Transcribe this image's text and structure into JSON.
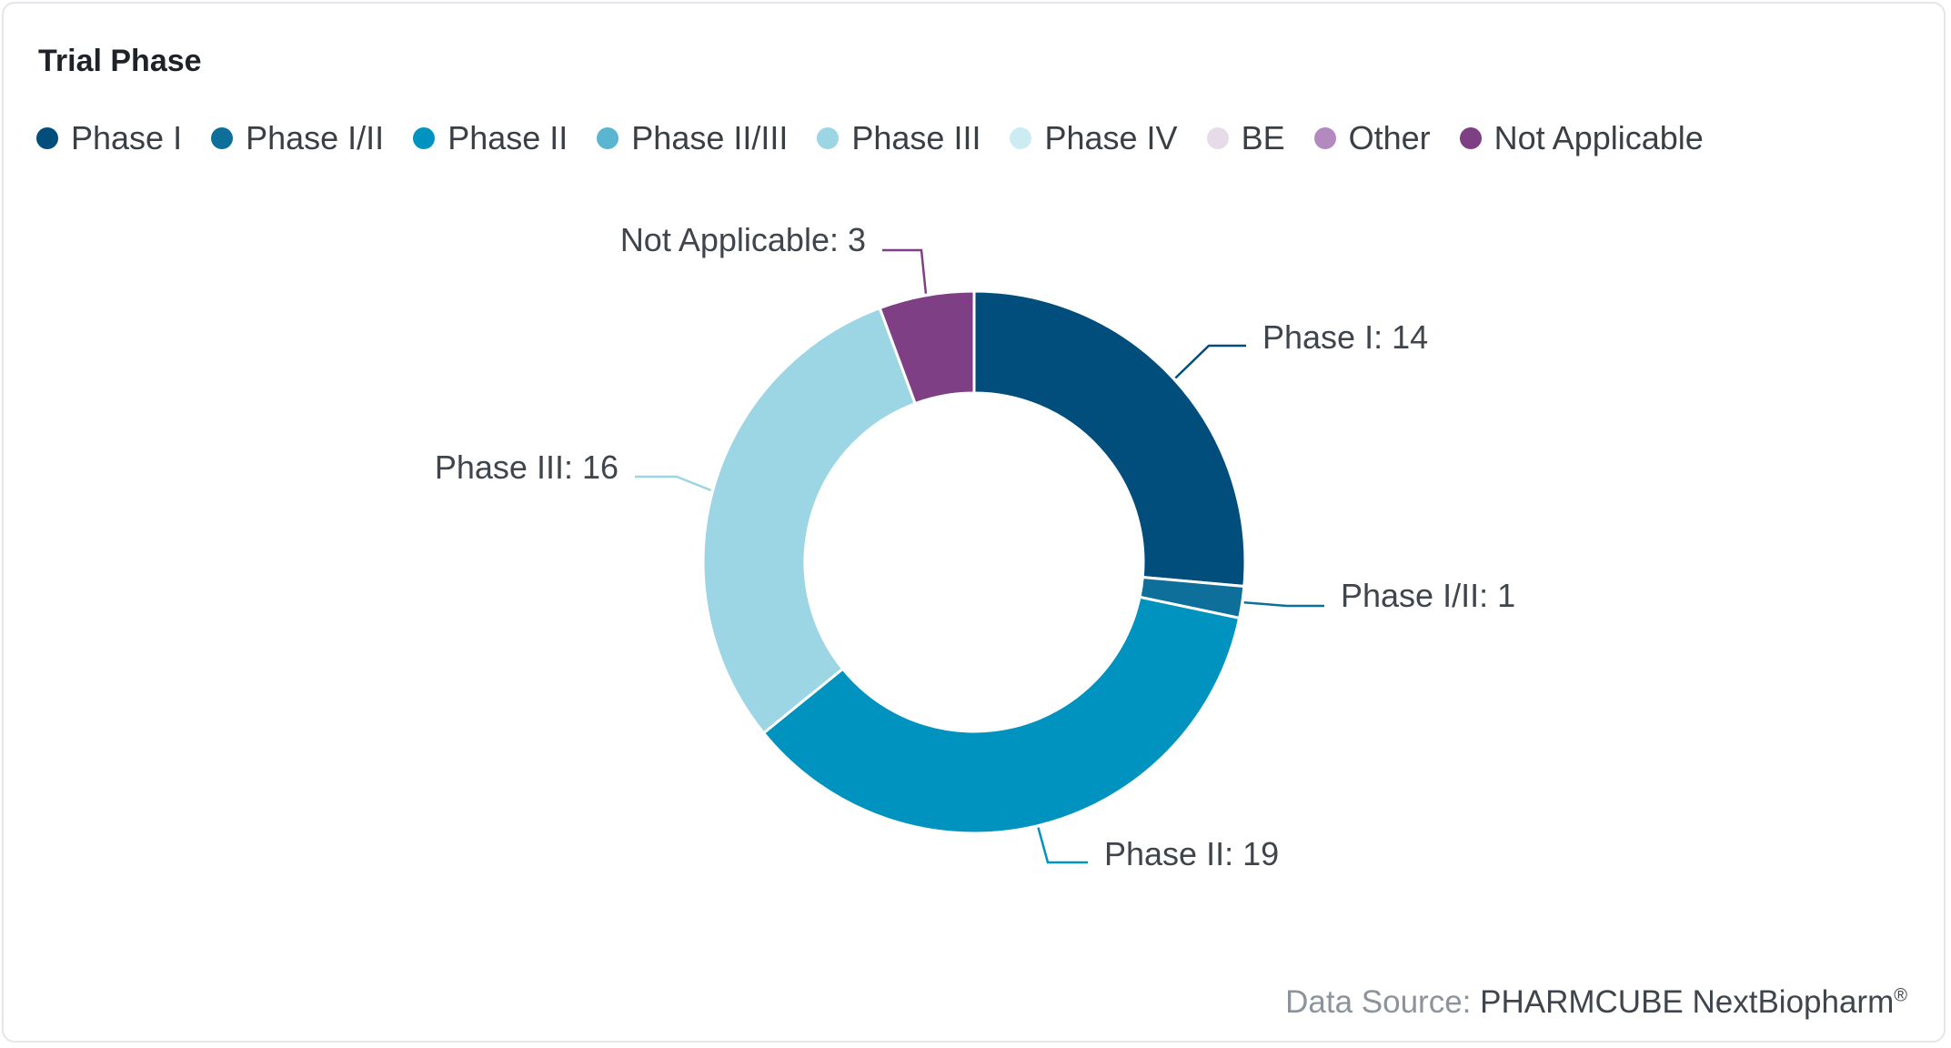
{
  "card": {
    "title": "Trial Phase"
  },
  "legend": [
    {
      "label": "Phase I",
      "color": "#014e7d"
    },
    {
      "label": "Phase I/II",
      "color": "#0f6f9b"
    },
    {
      "label": "Phase II",
      "color": "#0093c0"
    },
    {
      "label": "Phase II/III",
      "color": "#5ab6d0"
    },
    {
      "label": "Phase III",
      "color": "#9cd5e4"
    },
    {
      "label": "Phase IV",
      "color": "#cdebf3"
    },
    {
      "label": "BE",
      "color": "#e7dbe9"
    },
    {
      "label": "Other",
      "color": "#b38ac0"
    },
    {
      "label": "Not Applicable",
      "color": "#7e3f85"
    }
  ],
  "chart_data": {
    "type": "pie",
    "title": "Trial Phase",
    "donut": true,
    "legend_position": "top-left",
    "slices": [
      {
        "label": "Phase I",
        "value": 14,
        "color": "#014e7d",
        "data_label": "Phase I: 14"
      },
      {
        "label": "Phase I/II",
        "value": 1,
        "color": "#0f6f9b",
        "data_label": "Phase I/II: 1"
      },
      {
        "label": "Phase II",
        "value": 19,
        "color": "#0093c0",
        "data_label": "Phase II: 19"
      },
      {
        "label": "Phase III",
        "value": 16,
        "color": "#9cd5e4",
        "data_label": "Phase III: 16"
      },
      {
        "label": "Not Applicable",
        "value": 3,
        "color": "#7e3f85",
        "data_label": "Not Applicable: 3"
      }
    ]
  },
  "footer": {
    "source_label": "Data Source:",
    "source_value": "PHARMCUBE NextBiopharm",
    "registered_mark": "®"
  }
}
